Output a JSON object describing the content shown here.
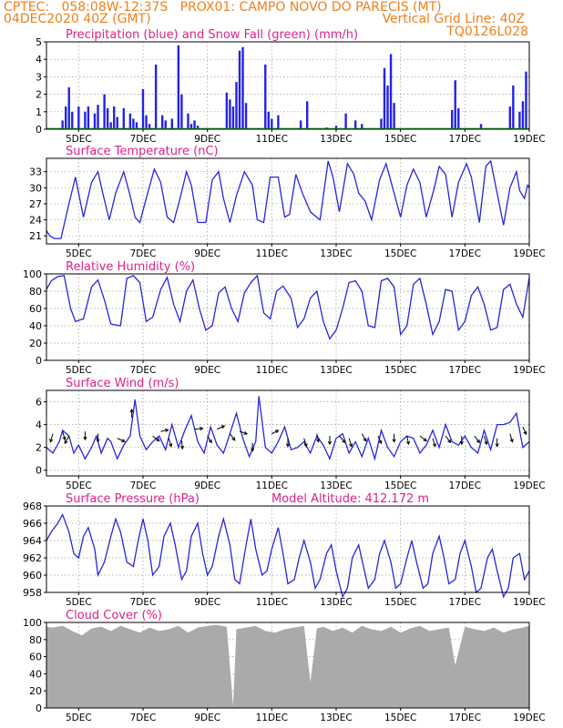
{
  "header": {
    "line1_left": "CPTEC:   058:08W-12:37S   PROX01: CAMPO NOVO DO PARECIS (MT)",
    "line2_left": "04DEC2020 40Z (GMT)",
    "line2_right": "Vertical Grid Line: 40Z",
    "line3_right": "TQ0126L028"
  },
  "colors": {
    "header": "#f07f1e",
    "title": "#e0208a",
    "precip": "#2323e6",
    "snow": "#1fa31f",
    "line": "#2626e0",
    "cloud": "#aaaaaa",
    "grid": "#9a9a9a",
    "arrow": "#000000"
  },
  "x_axis": {
    "start_day": 4,
    "end_day": 19,
    "tick_days": [
      5,
      7,
      9,
      11,
      13,
      15,
      17,
      19
    ],
    "tick_labels": [
      "5DEC",
      "7DEC",
      "9DEC",
      "11DEC",
      "13DEC",
      "15DEC",
      "17DEC",
      "19DEC"
    ]
  },
  "chart_data": [
    {
      "type": "bar",
      "title": "Precipitation (blue) and Snow Fall (green) (mm/h)",
      "ylim": [
        0,
        5
      ],
      "yticks": [
        0,
        1,
        2,
        3,
        4,
        5
      ],
      "series": [
        {
          "name": "Precipitation",
          "x": [
            4.5,
            4.6,
            4.7,
            4.8,
            5.0,
            5.2,
            5.3,
            5.5,
            5.6,
            5.8,
            5.9,
            6.0,
            6.1,
            6.2,
            6.4,
            6.6,
            6.7,
            6.8,
            7.0,
            7.1,
            7.2,
            7.4,
            7.6,
            7.7,
            7.9,
            8.1,
            8.2,
            8.4,
            8.5,
            8.6,
            8.7,
            9.6,
            9.7,
            9.8,
            9.9,
            10.0,
            10.1,
            10.2,
            10.8,
            10.9,
            11.0,
            11.2,
            11.9,
            12.1,
            12.7,
            13.0,
            13.3,
            13.6,
            13.8,
            14.4,
            14.5,
            14.6,
            14.7,
            14.8,
            16.6,
            16.7,
            16.8,
            17.5,
            18.4,
            18.5,
            18.7,
            18.8,
            18.9
          ],
          "values": [
            0.5,
            1.3,
            2.4,
            1.0,
            1.3,
            1.0,
            1.3,
            0.9,
            1.4,
            2.0,
            1.2,
            0.4,
            1.3,
            0.7,
            1.2,
            0.9,
            0.6,
            0.4,
            2.3,
            0.8,
            0.3,
            3.7,
            0.8,
            0.5,
            0.6,
            4.8,
            2.0,
            0.9,
            0.3,
            0.5,
            0.2,
            2.1,
            1.7,
            1.3,
            2.7,
            4.5,
            4.7,
            1.5,
            3.7,
            1.0,
            0.6,
            0.8,
            0.5,
            1.6,
            0.1,
            0.2,
            0.9,
            0.5,
            0.3,
            0.6,
            3.5,
            2.5,
            4.3,
            1.5,
            1.1,
            2.8,
            1.2,
            0.3,
            1.3,
            2.5,
            1.0,
            1.6,
            3.3
          ]
        },
        {
          "name": "Snow Fall",
          "values": [
            0
          ]
        }
      ]
    },
    {
      "type": "line",
      "title": "Surface Temperature (nC)",
      "ylim": [
        19.5,
        35.5
      ],
      "yticks": [
        21,
        24,
        27,
        30,
        33
      ],
      "x": [
        4.0,
        4.1,
        4.25,
        4.45,
        4.7,
        4.9,
        5.15,
        5.4,
        5.6,
        5.75,
        5.95,
        6.15,
        6.4,
        6.6,
        6.75,
        6.9,
        7.1,
        7.35,
        7.55,
        7.75,
        7.95,
        8.15,
        8.35,
        8.5,
        8.7,
        8.95,
        9.15,
        9.35,
        9.5,
        9.7,
        9.9,
        10.15,
        10.4,
        10.55,
        10.75,
        10.95,
        11.2,
        11.4,
        11.55,
        11.75,
        11.95,
        12.2,
        12.5,
        12.75,
        12.9,
        13.1,
        13.35,
        13.55,
        13.7,
        13.9,
        14.1,
        14.35,
        14.55,
        14.8,
        15.0,
        15.2,
        15.4,
        15.6,
        15.8,
        16.05,
        16.2,
        16.4,
        16.6,
        16.8,
        17.05,
        17.2,
        17.45,
        17.65,
        17.8,
        18.0,
        18.2,
        18.4,
        18.6,
        18.7,
        18.85,
        18.95,
        19.0
      ],
      "values": [
        22.0,
        21.0,
        20.5,
        20.5,
        27.0,
        32.0,
        24.5,
        31.0,
        33.0,
        29.0,
        24.0,
        29.0,
        33.0,
        28.5,
        24.5,
        23.5,
        28.0,
        33.5,
        31.0,
        24.5,
        23.5,
        28.0,
        33.0,
        30.5,
        23.5,
        23.5,
        31.5,
        33.0,
        28.0,
        23.5,
        28.5,
        33.0,
        30.5,
        24.0,
        23.5,
        32.0,
        32.0,
        24.5,
        25.0,
        32.5,
        29.0,
        25.5,
        24.0,
        35.0,
        32.0,
        25.5,
        34.5,
        32.5,
        29.0,
        27.5,
        24.0,
        31.5,
        34.5,
        29.0,
        24.5,
        30.5,
        33.5,
        31.0,
        24.5,
        30.0,
        34.0,
        32.5,
        24.5,
        31.0,
        34.5,
        32.0,
        23.5,
        34.0,
        35.0,
        29.0,
        23.0,
        30.0,
        33.0,
        29.5,
        28.0,
        30.5,
        30.0
      ]
    },
    {
      "type": "line",
      "title": "Relative Humidity (%)",
      "ylim": [
        0,
        100
      ],
      "yticks": [
        0,
        20,
        40,
        60,
        80,
        100
      ],
      "x": [
        4.0,
        4.15,
        4.35,
        4.55,
        4.75,
        4.9,
        5.15,
        5.4,
        5.6,
        5.8,
        6.0,
        6.3,
        6.5,
        6.7,
        6.9,
        7.1,
        7.3,
        7.55,
        7.75,
        7.95,
        8.15,
        8.35,
        8.55,
        8.75,
        8.95,
        9.15,
        9.35,
        9.55,
        9.75,
        9.95,
        10.15,
        10.35,
        10.55,
        10.75,
        10.95,
        11.15,
        11.35,
        11.6,
        11.8,
        12.0,
        12.2,
        12.4,
        12.6,
        12.8,
        13.0,
        13.2,
        13.4,
        13.6,
        13.8,
        14.0,
        14.2,
        14.4,
        14.6,
        14.8,
        15.0,
        15.2,
        15.4,
        15.6,
        15.8,
        16.0,
        16.2,
        16.4,
        16.6,
        16.8,
        17.0,
        17.2,
        17.4,
        17.6,
        17.8,
        18.0,
        18.2,
        18.4,
        18.6,
        18.8,
        19.0
      ],
      "values": [
        82.0,
        92.0,
        97.0,
        98.0,
        60.0,
        45.0,
        48.0,
        85.0,
        93.0,
        70.0,
        42.0,
        40.0,
        95.0,
        98.0,
        90.0,
        45.0,
        50.0,
        82.0,
        96.0,
        65.0,
        45.0,
        80.0,
        93.0,
        60.0,
        35.0,
        40.0,
        78.0,
        85.0,
        60.0,
        45.0,
        78.0,
        90.0,
        98.0,
        55.0,
        48.0,
        80.0,
        86.0,
        72.0,
        38.0,
        48.0,
        72.0,
        80.0,
        45.0,
        25.0,
        35.0,
        60.0,
        90.0,
        92.0,
        80.0,
        40.0,
        38.0,
        92.0,
        95.0,
        85.0,
        30.0,
        40.0,
        88.0,
        95.0,
        65.0,
        30.0,
        45.0,
        82.0,
        80.0,
        35.0,
        45.0,
        75.0,
        85.0,
        65.0,
        35.0,
        38.0,
        82.0,
        88.0,
        65.0,
        50.0,
        96.0
      ]
    },
    {
      "type": "line",
      "title": "Surface Wind (m/s)",
      "ylim": [
        -0.5,
        7
      ],
      "yticks": [
        0,
        2,
        4,
        6
      ],
      "x": [
        4.0,
        4.2,
        4.4,
        4.5,
        4.7,
        4.85,
        5.0,
        5.2,
        5.4,
        5.55,
        5.7,
        5.9,
        6.0,
        6.2,
        6.4,
        6.6,
        6.75,
        6.9,
        7.1,
        7.3,
        7.5,
        7.7,
        7.9,
        8.1,
        8.3,
        8.5,
        8.7,
        8.9,
        9.1,
        9.3,
        9.5,
        9.7,
        9.9,
        10.1,
        10.3,
        10.5,
        10.6,
        10.8,
        11.0,
        11.2,
        11.4,
        11.6,
        11.8,
        12.0,
        12.2,
        12.4,
        12.6,
        12.8,
        13.0,
        13.2,
        13.4,
        13.6,
        13.8,
        14.0,
        14.2,
        14.4,
        14.6,
        14.8,
        15.0,
        15.2,
        15.4,
        15.6,
        15.8,
        16.0,
        16.2,
        16.4,
        16.6,
        16.8,
        17.0,
        17.2,
        17.4,
        17.6,
        17.8,
        18.0,
        18.2,
        18.4,
        18.6,
        18.8,
        19.0
      ],
      "values": [
        2.0,
        1.5,
        2.5,
        3.5,
        3.0,
        1.5,
        2.2,
        1.0,
        2.0,
        3.0,
        1.5,
        2.8,
        2.5,
        1.0,
        2.2,
        3.0,
        6.2,
        3.0,
        1.8,
        2.5,
        3.0,
        1.8,
        4.0,
        2.0,
        3.5,
        4.8,
        2.5,
        1.5,
        3.8,
        2.2,
        1.5,
        3.2,
        5.0,
        2.8,
        1.2,
        2.5,
        6.5,
        2.0,
        1.5,
        2.5,
        3.8,
        1.8,
        2.0,
        2.5,
        1.5,
        3.0,
        2.2,
        1.0,
        2.8,
        3.2,
        1.5,
        2.5,
        1.2,
        2.8,
        1.0,
        3.5,
        2.0,
        1.2,
        2.5,
        3.0,
        2.8,
        1.5,
        2.2,
        3.5,
        2.0,
        4.0,
        2.5,
        2.2,
        3.0,
        2.0,
        1.5,
        3.5,
        1.8,
        4.0,
        4.0,
        4.2,
        5.0,
        2.0,
        2.5
      ],
      "arrows": [
        {
          "x": 4.2,
          "y": 3.2,
          "u": -0.3,
          "v": -1.0
        },
        {
          "x": 4.5,
          "y": 3.4,
          "u": 0.3,
          "v": -1.0
        },
        {
          "x": 4.7,
          "y": 3.0,
          "u": -0.5,
          "v": -0.9
        },
        {
          "x": 5.2,
          "y": 3.4,
          "u": 0.0,
          "v": -1.0
        },
        {
          "x": 5.6,
          "y": 3.2,
          "u": 0.0,
          "v": -1.0
        },
        {
          "x": 6.2,
          "y": 2.8,
          "u": 0.9,
          "v": -0.4
        },
        {
          "x": 6.65,
          "y": 4.6,
          "u": 0.0,
          "v": 1.0
        },
        {
          "x": 7.3,
          "y": 3.0,
          "u": 0.8,
          "v": -0.6
        },
        {
          "x": 7.55,
          "y": 3.4,
          "u": 0.9,
          "v": 0.2
        },
        {
          "x": 7.8,
          "y": 2.8,
          "u": 0.3,
          "v": -1.0
        },
        {
          "x": 8.2,
          "y": 2.6,
          "u": 0.1,
          "v": -1.0
        },
        {
          "x": 8.6,
          "y": 3.6,
          "u": 1.0,
          "v": 0.1
        },
        {
          "x": 9.0,
          "y": 3.0,
          "u": 0.5,
          "v": -0.8
        },
        {
          "x": 9.3,
          "y": 3.6,
          "u": 0.9,
          "v": 0.4
        },
        {
          "x": 9.7,
          "y": 3.2,
          "u": 0.6,
          "v": -0.8
        },
        {
          "x": 10.0,
          "y": 3.4,
          "u": 0.9,
          "v": -0.3
        },
        {
          "x": 10.4,
          "y": 2.4,
          "u": 0.0,
          "v": -1.0
        },
        {
          "x": 11.0,
          "y": 3.2,
          "u": 0.8,
          "v": 0.4
        },
        {
          "x": 11.5,
          "y": 2.8,
          "u": 0.0,
          "v": -1.0
        },
        {
          "x": 12.0,
          "y": 2.8,
          "u": 0.3,
          "v": -1.0
        },
        {
          "x": 12.4,
          "y": 3.2,
          "u": 0.2,
          "v": -1.0
        },
        {
          "x": 12.8,
          "y": 3.0,
          "u": 0.0,
          "v": -1.0
        },
        {
          "x": 13.1,
          "y": 3.0,
          "u": 0.7,
          "v": -0.8
        },
        {
          "x": 13.4,
          "y": 2.8,
          "u": 0.3,
          "v": -1.0
        },
        {
          "x": 13.8,
          "y": 3.2,
          "u": 0.5,
          "v": -0.9
        },
        {
          "x": 14.3,
          "y": 3.0,
          "u": 0.4,
          "v": -0.9
        },
        {
          "x": 14.8,
          "y": 3.2,
          "u": 0.0,
          "v": -1.0
        },
        {
          "x": 15.2,
          "y": 3.0,
          "u": 0.2,
          "v": -1.0
        },
        {
          "x": 15.6,
          "y": 3.0,
          "u": 0.8,
          "v": -0.6
        },
        {
          "x": 16.0,
          "y": 2.8,
          "u": 0.3,
          "v": -1.0
        },
        {
          "x": 16.4,
          "y": 3.0,
          "u": 0.6,
          "v": -0.8
        },
        {
          "x": 16.9,
          "y": 3.0,
          "u": 0.0,
          "v": -1.0
        },
        {
          "x": 17.3,
          "y": 3.0,
          "u": 0.6,
          "v": -0.8
        },
        {
          "x": 17.6,
          "y": 3.0,
          "u": 0.3,
          "v": -1.0
        },
        {
          "x": 18.0,
          "y": 2.8,
          "u": 0.0,
          "v": -1.0
        },
        {
          "x": 18.4,
          "y": 3.2,
          "u": 0.3,
          "v": -1.0
        },
        {
          "x": 18.8,
          "y": 3.8,
          "u": 0.4,
          "v": -0.9
        }
      ]
    },
    {
      "type": "line",
      "title": "Surface Pressure (hPa)",
      "annotation": "Model Altitude: 412.172 m",
      "ylim": [
        958,
        968
      ],
      "yticks": [
        958,
        960,
        962,
        964,
        966,
        968
      ],
      "x": [
        4.0,
        4.15,
        4.35,
        4.5,
        4.7,
        4.85,
        5.0,
        5.15,
        5.3,
        5.5,
        5.6,
        5.8,
        6.0,
        6.15,
        6.3,
        6.5,
        6.7,
        6.85,
        7.0,
        7.15,
        7.3,
        7.5,
        7.65,
        7.85,
        8.0,
        8.2,
        8.35,
        8.5,
        8.7,
        8.85,
        9.0,
        9.15,
        9.35,
        9.5,
        9.7,
        9.85,
        10.0,
        10.2,
        10.35,
        10.5,
        10.7,
        10.85,
        11.0,
        11.2,
        11.35,
        11.5,
        11.7,
        11.85,
        12.0,
        12.2,
        12.35,
        12.5,
        12.7,
        12.85,
        13.0,
        13.2,
        13.35,
        13.5,
        13.7,
        13.85,
        14.0,
        14.2,
        14.35,
        14.5,
        14.7,
        14.85,
        15.0,
        15.2,
        15.35,
        15.5,
        15.7,
        15.85,
        16.0,
        16.2,
        16.35,
        16.5,
        16.7,
        16.85,
        17.0,
        17.2,
        17.35,
        17.5,
        17.7,
        17.85,
        18.0,
        18.2,
        18.35,
        18.5,
        18.7,
        18.85,
        19.0
      ],
      "values": [
        964.0,
        965.0,
        966.0,
        967.0,
        965.0,
        962.5,
        962.0,
        964.5,
        965.5,
        963.0,
        960.0,
        961.5,
        964.5,
        966.5,
        965.0,
        961.5,
        961.0,
        964.0,
        966.5,
        964.0,
        960.0,
        961.0,
        964.5,
        966.0,
        963.5,
        959.5,
        960.5,
        964.5,
        966.0,
        962.5,
        960.0,
        961.0,
        964.5,
        966.5,
        963.5,
        959.5,
        959.0,
        963.5,
        966.5,
        963.0,
        960.0,
        960.5,
        963.0,
        965.5,
        962.5,
        959.0,
        959.5,
        962.0,
        964.0,
        961.5,
        958.5,
        959.5,
        962.5,
        963.5,
        960.5,
        957.5,
        958.5,
        962.0,
        963.5,
        961.0,
        958.5,
        959.5,
        962.5,
        964.0,
        961.5,
        958.5,
        959.0,
        962.0,
        964.0,
        961.5,
        958.5,
        959.0,
        962.5,
        964.5,
        962.0,
        959.0,
        959.5,
        962.5,
        964.0,
        961.0,
        958.0,
        958.5,
        962.0,
        963.0,
        960.5,
        957.5,
        958.5,
        962.0,
        962.5,
        959.5,
        960.5
      ]
    },
    {
      "type": "area",
      "title": "Cloud Cover (%)",
      "ylim": [
        0,
        100
      ],
      "yticks": [
        0,
        20,
        40,
        60,
        80,
        100
      ],
      "x": [
        4.0,
        4.2,
        4.5,
        4.8,
        5.1,
        5.4,
        5.7,
        6.0,
        6.3,
        6.6,
        6.9,
        7.2,
        7.5,
        7.8,
        8.1,
        8.4,
        8.7,
        9.0,
        9.3,
        9.6,
        9.8,
        9.9,
        10.2,
        10.5,
        10.8,
        11.1,
        11.4,
        11.7,
        12.0,
        12.2,
        12.4,
        12.6,
        12.9,
        13.2,
        13.5,
        13.8,
        14.1,
        14.4,
        14.7,
        15.0,
        15.3,
        15.6,
        15.9,
        16.2,
        16.5,
        16.7,
        17.0,
        17.3,
        17.6,
        17.9,
        18.2,
        18.5,
        18.8,
        19.0
      ],
      "values": [
        95,
        94,
        96,
        90,
        85,
        93,
        95,
        90,
        96,
        92,
        88,
        94,
        90,
        92,
        96,
        88,
        94,
        96,
        97,
        95,
        2,
        92,
        94,
        96,
        90,
        88,
        92,
        94,
        96,
        30,
        93,
        95,
        90,
        94,
        88,
        96,
        92,
        90,
        95,
        88,
        93,
        96,
        90,
        92,
        94,
        50,
        95,
        92,
        90,
        94,
        88,
        92,
        94,
        96
      ]
    }
  ]
}
